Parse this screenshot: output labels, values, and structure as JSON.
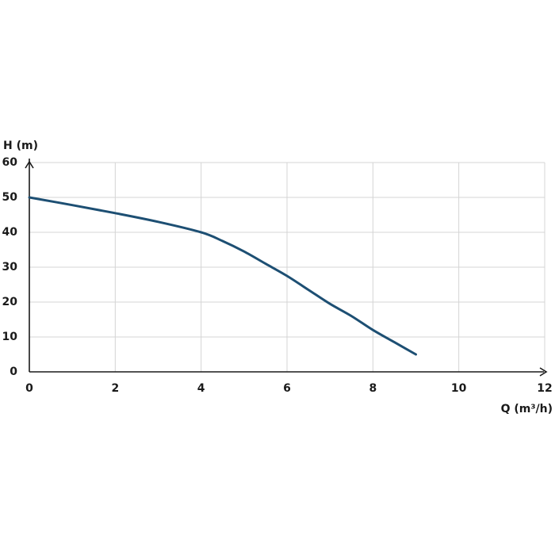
{
  "chart_data": {
    "type": "line",
    "xlabel": "Q (m³/h)",
    "ylabel": "H (m)",
    "x": [
      0,
      1,
      2,
      3,
      4,
      4.5,
      5,
      5.5,
      6,
      6.5,
      7,
      7.5,
      8,
      8.5,
      9
    ],
    "values": [
      50,
      47.8,
      45.5,
      43,
      40,
      37.5,
      34.5,
      31,
      27.5,
      23.5,
      19.5,
      16,
      12,
      8.5,
      5
    ],
    "color": "#1d4f73",
    "xlim": [
      0,
      12
    ],
    "xticks": [
      0,
      2,
      4,
      6,
      8,
      10,
      12
    ],
    "ylim": [
      0,
      60
    ],
    "yticks": [
      0,
      10,
      20,
      30,
      40,
      50,
      60
    ],
    "grid": true
  }
}
